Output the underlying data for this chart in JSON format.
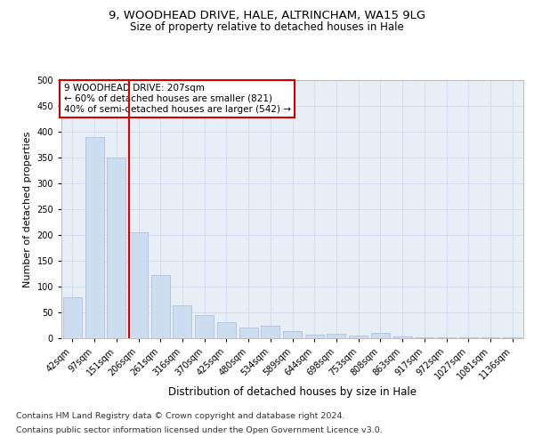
{
  "title1": "9, WOODHEAD DRIVE, HALE, ALTRINCHAM, WA15 9LG",
  "title2": "Size of property relative to detached houses in Hale",
  "xlabel": "Distribution of detached houses by size in Hale",
  "ylabel": "Number of detached properties",
  "categories": [
    "42sqm",
    "97sqm",
    "151sqm",
    "206sqm",
    "261sqm",
    "316sqm",
    "370sqm",
    "425sqm",
    "480sqm",
    "534sqm",
    "589sqm",
    "644sqm",
    "698sqm",
    "753sqm",
    "808sqm",
    "863sqm",
    "917sqm",
    "972sqm",
    "1027sqm",
    "1081sqm",
    "1136sqm"
  ],
  "values": [
    80,
    390,
    350,
    205,
    122,
    63,
    45,
    31,
    21,
    24,
    13,
    7,
    8,
    6,
    10,
    3,
    2,
    2,
    1,
    1,
    1
  ],
  "bar_color": "#ccddf0",
  "bar_edge_color": "#aabbd8",
  "vline_index": 3,
  "vline_color": "#dd0000",
  "annot_line1": "9 WOODHEAD DRIVE: 207sqm",
  "annot_line2": "← 60% of detached houses are smaller (821)",
  "annot_line3": "40% of semi-detached houses are larger (542) →",
  "annot_facecolor": "white",
  "annot_edgecolor": "#cc0000",
  "footnote1": "Contains HM Land Registry data © Crown copyright and database right 2024.",
  "footnote2": "Contains public sector information licensed under the Open Government Licence v3.0.",
  "ylim_max": 500,
  "yticks": [
    0,
    50,
    100,
    150,
    200,
    250,
    300,
    350,
    400,
    450,
    500
  ],
  "grid_color": "#ced8ea",
  "plot_bg_color": "#e8eef6",
  "title1_fontsize": 9.5,
  "title2_fontsize": 8.5,
  "xlabel_fontsize": 8.5,
  "ylabel_fontsize": 8.0,
  "tick_fontsize": 7.0,
  "annot_fontsize": 7.5,
  "footnote_fontsize": 6.8
}
